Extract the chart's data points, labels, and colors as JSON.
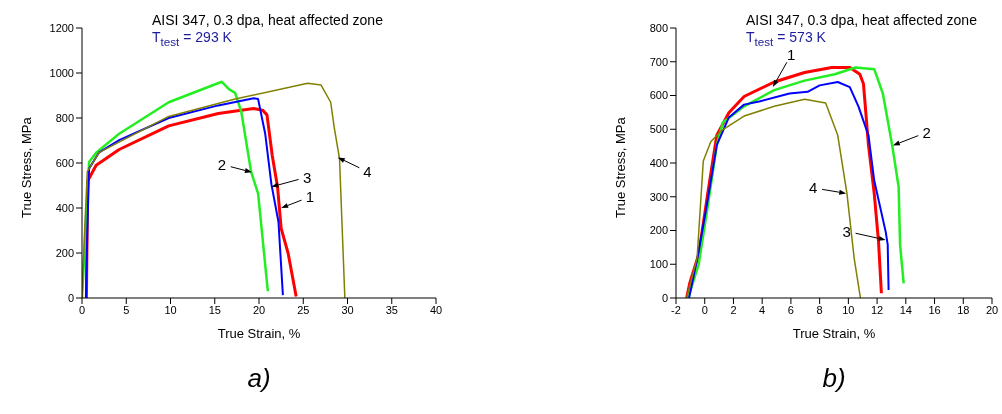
{
  "chart_data": [
    {
      "type": "line",
      "title": "AISI 347, 0.3 dpa, heat affected zone",
      "subtitle": "T$_{test}$ = 293 K",
      "xlabel": "True Strain, %",
      "ylabel": "True Stress, MPa",
      "xlim": [
        0,
        40
      ],
      "xticks": [
        0,
        5,
        10,
        15,
        20,
        25,
        30,
        35,
        40
      ],
      "ylim": [
        0,
        1200
      ],
      "yticks": [
        0,
        200,
        400,
        600,
        800,
        1000,
        1200
      ],
      "grid": false,
      "legend": false,
      "marker": "none",
      "line_style": "solid",
      "series": [
        {
          "color": "#ff0000",
          "x": [
            0.5,
            0.64,
            1.6,
            4.2,
            9.8,
            15.4,
            19.4,
            20.4,
            20.9,
            21.5,
            22.1,
            22.5,
            23.3,
            24.2
          ],
          "values": [
            0,
            520,
            590,
            660,
            765,
            820,
            842,
            835,
            814,
            632,
            492,
            310,
            197,
            7
          ]
        },
        {
          "color": "#22ee22",
          "x": [
            0,
            0.4,
            0.8,
            1.6,
            4.2,
            9.8,
            15.8,
            16.6,
            17.3,
            18,
            19.1,
            19.9,
            21
          ],
          "values": [
            0,
            300,
            604,
            646,
            730,
            870,
            961,
            928,
            912,
            828,
            562,
            464,
            30
          ]
        },
        {
          "color": "#0000ff",
          "x": [
            0.45,
            0.6,
            0.8,
            1.9,
            4.2,
            9.8,
            15.4,
            19.4,
            19.9,
            20.7,
            21.4,
            22.2,
            22.7
          ],
          "values": [
            0,
            300,
            575,
            646,
            702,
            800,
            856,
            888,
            884,
            730,
            506,
            338,
            13
          ]
        },
        {
          "color": "#808000",
          "x": [
            0,
            0.3,
            0.6,
            1.9,
            9.8,
            17.3,
            25.5,
            27,
            28.1,
            28.5,
            29.1,
            29.7
          ],
          "values": [
            0,
            300,
            562,
            646,
            807,
            884,
            954,
            947,
            870,
            758,
            618,
            0
          ]
        }
      ],
      "annotations": [
        {
          "text": "2",
          "x": 19.2,
          "y": 559
        },
        {
          "text": "3",
          "x": 21.4,
          "y": 494
        },
        {
          "text": "1",
          "x": 22.5,
          "y": 400
        },
        {
          "text": "4",
          "x": 28.9,
          "y": 625
        },
        "a)"
      ]
    },
    {
      "type": "line",
      "title": "AISI 347, 0.3 dpa, heat affected zone",
      "subtitle": "T$_{test}$ = 573 K",
      "xlabel": "True Strain, %",
      "ylabel": "True Stress, MPa",
      "xlim": [
        -2,
        20
      ],
      "xticks": [
        -2,
        0,
        2,
        4,
        6,
        8,
        10,
        12,
        14,
        16,
        18,
        20
      ],
      "ylim": [
        0,
        800
      ],
      "yticks": [
        0,
        100,
        200,
        300,
        400,
        500,
        600,
        700,
        800
      ],
      "grid": false,
      "legend": false,
      "marker": "none",
      "line_style": "solid",
      "series": [
        {
          "color": "#ff0000",
          "x": [
            -1.26,
            -1.05,
            -0.42,
            0.21,
            0.84,
            1.68,
            2.74,
            4.84,
            6.95,
            8.84,
            10.1,
            10.8,
            11.05,
            11.4,
            11.8,
            12.1,
            12.3
          ],
          "values": [
            0,
            43,
            129,
            310,
            482,
            549,
            597,
            640,
            668,
            683,
            683,
            663,
            635,
            453,
            310,
            167,
            14
          ]
        },
        {
          "color": "#22ee22",
          "x": [
            -1.16,
            -0.42,
            0.21,
            0.84,
            1.26,
            2.74,
            4.84,
            6.95,
            9.05,
            10.5,
            11.8,
            12.4,
            13.05,
            13.5,
            13.6,
            13.85
          ],
          "values": [
            0,
            100,
            272,
            453,
            520,
            568,
            616,
            644,
            663,
            683,
            678,
            606,
            453,
            329,
            158,
            43
          ]
        },
        {
          "color": "#0000ff",
          "x": [
            -1.09,
            -0.42,
            0.21,
            0.84,
            1.68,
            2.74,
            3.79,
            5.9,
            7.16,
            8,
            9.26,
            10.1,
            10.7,
            11.4,
            11.8,
            12.6,
            12.74,
            12.8
          ],
          "values": [
            0,
            138,
            291,
            453,
            535,
            573,
            582,
            606,
            611,
            630,
            640,
            625,
            568,
            482,
            348,
            196,
            158,
            24
          ]
        },
        {
          "color": "#808000",
          "x": [
            -1.26,
            -0.53,
            -0.1,
            0.42,
            1.16,
            2.74,
            4.84,
            6.95,
            8.42,
            9.26,
            9.9,
            10.4,
            10.84
          ],
          "values": [
            0,
            119,
            406,
            463,
            496,
            539,
            568,
            589,
            578,
            482,
            310,
            119,
            0
          ]
        }
      ],
      "annotations": [
        {
          "text": "1",
          "x": 4.74,
          "y": 625
        },
        {
          "text": "2",
          "x": 13.1,
          "y": 452
        },
        {
          "text": "4",
          "x": 9.85,
          "y": 310
        },
        {
          "text": "3",
          "x": 12.6,
          "y": 172
        },
        "b)"
      ]
    }
  ]
}
